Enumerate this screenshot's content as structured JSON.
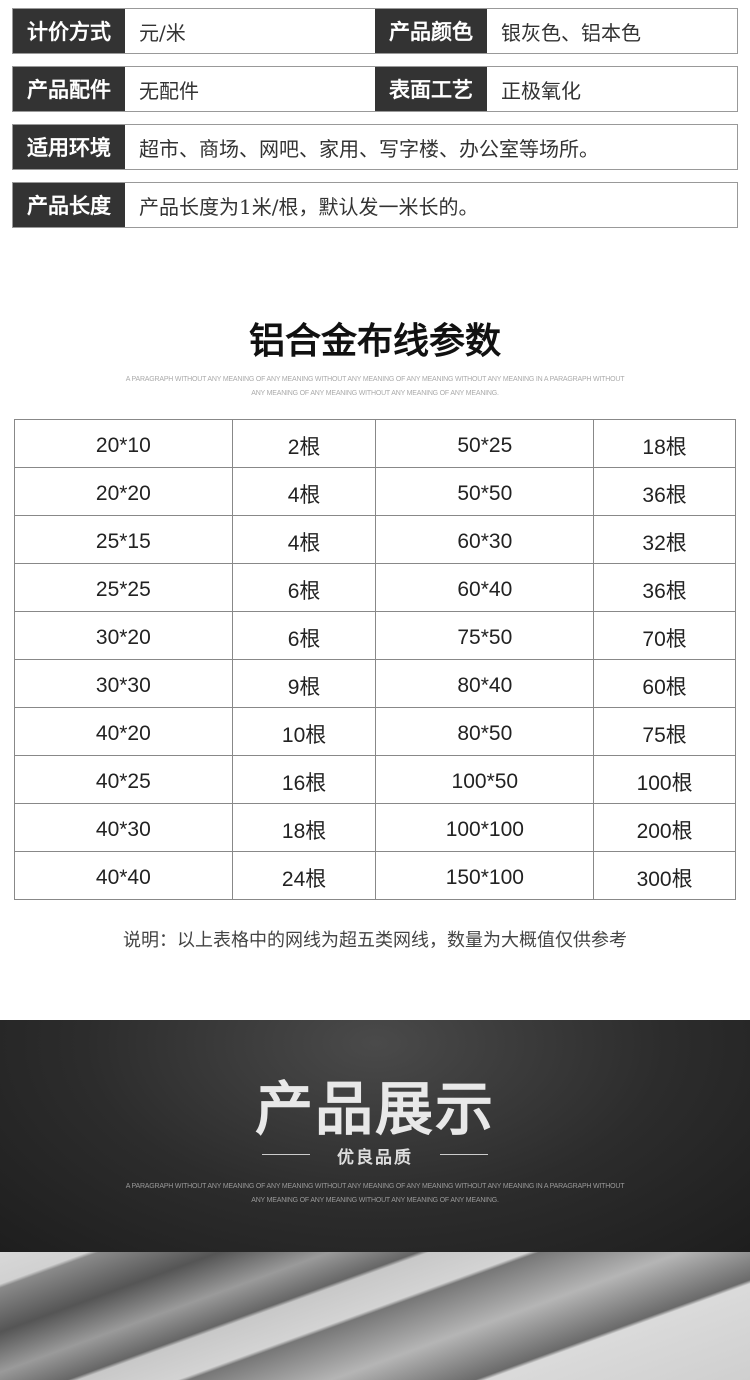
{
  "specs": {
    "row1": {
      "l1": "计价方式",
      "v1": "元/米",
      "l2": "产品颜色",
      "v2": "银灰色、铝本色"
    },
    "row2": {
      "l1": "产品配件",
      "v1": "无配件",
      "l2": "表面工艺",
      "v2": "正极氧化"
    },
    "row3": {
      "l1": "适用环境",
      "v1": "超市、商场、网吧、家用、写字楼、办公室等场所。"
    },
    "row4": {
      "l1": "产品长度",
      "v1": "产品长度为1米/根，默认发一米长的。"
    }
  },
  "params": {
    "title": "铝合金布线参数",
    "filler1": "A PARAGRAPH WITHOUT ANY MEANING OF ANY MEANING WITHOUT ANY MEANING OF ANY MEANING WITHOUT ANY MEANING IN A PARAGRAPH WITHOUT",
    "filler2": "ANY MEANING OF ANY MEANING WITHOUT ANY MEANING OF ANY MEANING.",
    "rows": [
      [
        "20*10",
        "2根",
        "50*25",
        "18根"
      ],
      [
        "20*20",
        "4根",
        "50*50",
        "36根"
      ],
      [
        "25*15",
        "4根",
        "60*30",
        "32根"
      ],
      [
        "25*25",
        "6根",
        "60*40",
        "36根"
      ],
      [
        "30*20",
        "6根",
        "75*50",
        "70根"
      ],
      [
        "30*30",
        "9根",
        "80*40",
        "60根"
      ],
      [
        "40*20",
        "10根",
        "80*50",
        "75根"
      ],
      [
        "40*25",
        "16根",
        "100*50",
        "100根"
      ],
      [
        "40*30",
        "18根",
        "100*100",
        "200根"
      ],
      [
        "40*40",
        "24根",
        "150*100",
        "300根"
      ]
    ],
    "note": "说明：以上表格中的网线为超五类网线，数量为大概值仅供参考"
  },
  "showcase": {
    "title": "产品展示",
    "subtitle": "优良品质",
    "filler1": "A PARAGRAPH WITHOUT ANY MEANING OF ANY MEANING WITHOUT ANY MEANING OF ANY MEANING WITHOUT ANY MEANING IN A PARAGRAPH WITHOUT",
    "filler2": "ANY MEANING OF ANY MEANING WITHOUT ANY MEANING OF ANY MEANING."
  }
}
